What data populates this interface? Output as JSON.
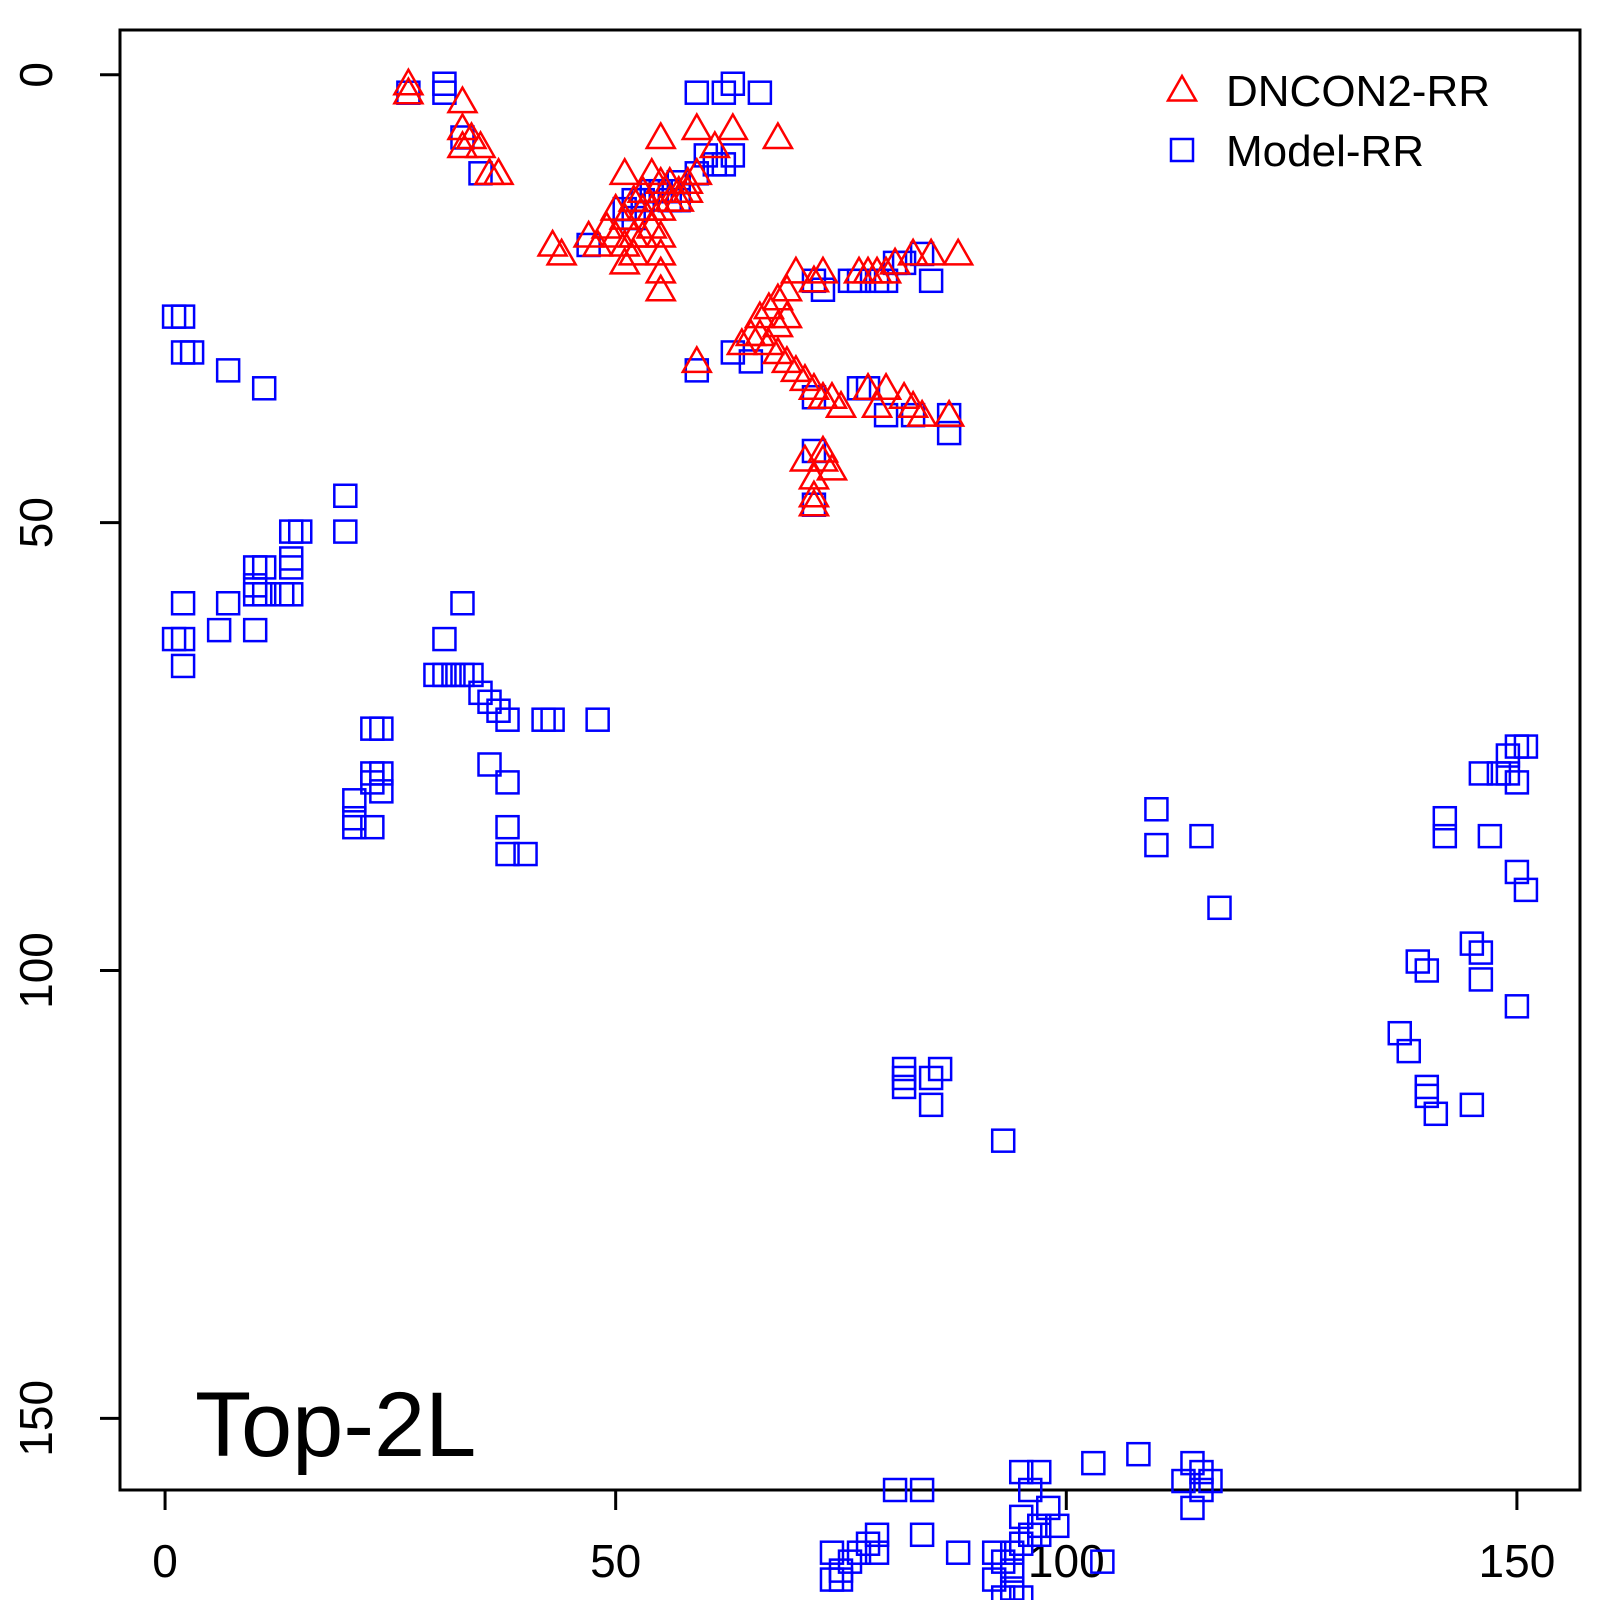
{
  "chart_data": {
    "type": "scatter",
    "xlim": [
      -5,
      157
    ],
    "ylim": [
      -5,
      158
    ],
    "y_reversed": true,
    "x_ticks": [
      0,
      50,
      100,
      150
    ],
    "y_ticks": [
      0,
      50,
      100,
      150
    ],
    "x_tick_labels": [
      "0",
      "50",
      "100",
      "150"
    ],
    "y_tick_labels": [
      "0",
      "50",
      "100",
      "150"
    ],
    "annotation": "Top-2L",
    "legend_position": "top-right",
    "grid": false,
    "series": [
      {
        "name": "DNCON2-RR",
        "marker": "triangle",
        "color": "#ff0000",
        "points": [
          [
            27,
            1
          ],
          [
            27,
            2
          ],
          [
            33,
            3
          ],
          [
            33,
            6
          ],
          [
            34,
            7
          ],
          [
            33,
            8
          ],
          [
            35,
            8
          ],
          [
            36,
            11
          ],
          [
            37,
            11
          ],
          [
            68,
            7
          ],
          [
            63,
            6
          ],
          [
            59,
            6
          ],
          [
            61,
            8
          ],
          [
            55,
            7
          ],
          [
            51,
            11
          ],
          [
            53,
            13
          ],
          [
            54,
            11
          ],
          [
            55,
            12
          ],
          [
            56,
            12
          ],
          [
            57,
            13
          ],
          [
            58,
            13
          ],
          [
            50,
            15
          ],
          [
            51,
            16
          ],
          [
            52,
            14
          ],
          [
            53,
            15
          ],
          [
            54,
            15
          ],
          [
            55,
            15
          ],
          [
            56,
            14
          ],
          [
            57,
            14
          ],
          [
            58,
            12
          ],
          [
            59,
            11
          ],
          [
            43,
            19
          ],
          [
            44,
            20
          ],
          [
            47,
            18
          ],
          [
            48,
            19
          ],
          [
            49,
            17
          ],
          [
            50,
            18
          ],
          [
            51,
            19
          ],
          [
            51,
            21
          ],
          [
            52,
            18
          ],
          [
            52,
            20
          ],
          [
            53,
            18
          ],
          [
            54,
            17
          ],
          [
            55,
            18
          ],
          [
            55,
            20
          ],
          [
            55,
            22
          ],
          [
            55,
            24
          ],
          [
            88,
            20
          ],
          [
            85,
            20
          ],
          [
            83,
            20
          ],
          [
            81,
            21
          ],
          [
            80,
            22
          ],
          [
            79,
            22
          ],
          [
            78,
            22
          ],
          [
            77,
            22
          ],
          [
            73,
            22
          ],
          [
            72,
            23
          ],
          [
            70,
            22
          ],
          [
            69,
            24
          ],
          [
            68,
            25
          ],
          [
            67,
            26
          ],
          [
            66,
            27
          ],
          [
            69,
            27
          ],
          [
            65,
            29
          ],
          [
            64,
            30
          ],
          [
            66,
            29
          ],
          [
            67,
            30
          ],
          [
            68,
            31
          ],
          [
            69,
            32
          ],
          [
            70,
            33
          ],
          [
            71,
            34
          ],
          [
            72,
            35
          ],
          [
            73,
            36
          ],
          [
            74,
            36
          ],
          [
            75,
            37
          ],
          [
            68,
            28
          ],
          [
            59,
            32
          ],
          [
            78,
            35
          ],
          [
            80,
            35
          ],
          [
            82,
            36
          ],
          [
            83,
            37
          ],
          [
            79,
            37
          ],
          [
            84,
            38
          ],
          [
            87,
            38
          ],
          [
            73,
            42
          ],
          [
            73,
            43
          ],
          [
            71,
            43
          ],
          [
            74,
            44
          ],
          [
            72,
            45
          ],
          [
            72,
            47
          ],
          [
            72,
            48
          ]
        ]
      },
      {
        "name": "Model-RR",
        "marker": "square",
        "color": "#0000ff",
        "points": [
          [
            27,
            2
          ],
          [
            31,
            1
          ],
          [
            31,
            2
          ],
          [
            33,
            7
          ],
          [
            35,
            11
          ],
          [
            59,
            2
          ],
          [
            62,
            2
          ],
          [
            63,
            1
          ],
          [
            66,
            2
          ],
          [
            63,
            9
          ],
          [
            62,
            10
          ],
          [
            61,
            10
          ],
          [
            60,
            9
          ],
          [
            59,
            11
          ],
          [
            57,
            12
          ],
          [
            56,
            13
          ],
          [
            55,
            13
          ],
          [
            54,
            13
          ],
          [
            53,
            14
          ],
          [
            52,
            14
          ],
          [
            51,
            15
          ],
          [
            52,
            16
          ],
          [
            56,
            14
          ],
          [
            57,
            14
          ],
          [
            47,
            19
          ],
          [
            72,
            23
          ],
          [
            73,
            24
          ],
          [
            76,
            23
          ],
          [
            77,
            23
          ],
          [
            79,
            23
          ],
          [
            80,
            23
          ],
          [
            81,
            21
          ],
          [
            82,
            21
          ],
          [
            84,
            20
          ],
          [
            85,
            23
          ],
          [
            59,
            33
          ],
          [
            63,
            31
          ],
          [
            65,
            32
          ],
          [
            72,
            36
          ],
          [
            77,
            35
          ],
          [
            78,
            35
          ],
          [
            80,
            38
          ],
          [
            83,
            38
          ],
          [
            87,
            38
          ],
          [
            87,
            40
          ],
          [
            72,
            42
          ],
          [
            72,
            48
          ],
          [
            1,
            27
          ],
          [
            2,
            27
          ],
          [
            2,
            31
          ],
          [
            3,
            31
          ],
          [
            7,
            33
          ],
          [
            11,
            35
          ],
          [
            20,
            47
          ],
          [
            20,
            51
          ],
          [
            14,
            51
          ],
          [
            15,
            51
          ],
          [
            14,
            54
          ],
          [
            14,
            55
          ],
          [
            10,
            55
          ],
          [
            11,
            55
          ],
          [
            10,
            57
          ],
          [
            10,
            58
          ],
          [
            11,
            58
          ],
          [
            13,
            58
          ],
          [
            14,
            58
          ],
          [
            2,
            59
          ],
          [
            7,
            59
          ],
          [
            6,
            62
          ],
          [
            10,
            62
          ],
          [
            1,
            63
          ],
          [
            2,
            63
          ],
          [
            2,
            66
          ],
          [
            33,
            59
          ],
          [
            31,
            63
          ],
          [
            30,
            67
          ],
          [
            31,
            67
          ],
          [
            32,
            67
          ],
          [
            33,
            67
          ],
          [
            34,
            67
          ],
          [
            35,
            69
          ],
          [
            36,
            70
          ],
          [
            37,
            71
          ],
          [
            38,
            72
          ],
          [
            42,
            72
          ],
          [
            43,
            72
          ],
          [
            48,
            72
          ],
          [
            23,
            73
          ],
          [
            24,
            73
          ],
          [
            23,
            78
          ],
          [
            24,
            78
          ],
          [
            23,
            79
          ],
          [
            24,
            80
          ],
          [
            21,
            81
          ],
          [
            21,
            83
          ],
          [
            23,
            84
          ],
          [
            21,
            84
          ],
          [
            36,
            77
          ],
          [
            38,
            79
          ],
          [
            38,
            84
          ],
          [
            38,
            87
          ],
          [
            40,
            87
          ],
          [
            82,
            111
          ],
          [
            82,
            112
          ],
          [
            82,
            113
          ],
          [
            85,
            112
          ],
          [
            86,
            111
          ],
          [
            85,
            115
          ],
          [
            93,
            119
          ],
          [
            150,
            75
          ],
          [
            151,
            75
          ],
          [
            149,
            76
          ],
          [
            148,
            78
          ],
          [
            149,
            78
          ],
          [
            150,
            79
          ],
          [
            146,
            78
          ],
          [
            142,
            83
          ],
          [
            142,
            85
          ],
          [
            147,
            85
          ],
          [
            150,
            89
          ],
          [
            151,
            91
          ],
          [
            139,
            99
          ],
          [
            140,
            100
          ],
          [
            145,
            97
          ],
          [
            146,
            98
          ],
          [
            146,
            101
          ],
          [
            150,
            104
          ],
          [
            137,
            107
          ],
          [
            138,
            109
          ],
          [
            140,
            113
          ],
          [
            141,
            116
          ],
          [
            145,
            115
          ],
          [
            140,
            114
          ],
          [
            110,
            82
          ],
          [
            110,
            86
          ],
          [
            115,
            85
          ],
          [
            117,
            93
          ],
          [
            108,
            154
          ],
          [
            103,
            155
          ],
          [
            114,
            155
          ],
          [
            115,
            156
          ],
          [
            116,
            157
          ],
          [
            113,
            157
          ],
          [
            115,
            158
          ],
          [
            114,
            160
          ],
          [
            95,
            156
          ],
          [
            97,
            156
          ],
          [
            96,
            158
          ],
          [
            98,
            160
          ],
          [
            95,
            161
          ],
          [
            97,
            162
          ],
          [
            99,
            162
          ],
          [
            96,
            163
          ],
          [
            97,
            163
          ],
          [
            95,
            164
          ],
          [
            94,
            165
          ],
          [
            93,
            166
          ],
          [
            94,
            167
          ],
          [
            92,
            168
          ],
          [
            94,
            169
          ],
          [
            93,
            170
          ],
          [
            95,
            170
          ],
          [
            81,
            158
          ],
          [
            84,
            158
          ],
          [
            84,
            163
          ],
          [
            88,
            165
          ],
          [
            92,
            165
          ],
          [
            104,
            166
          ],
          [
            79,
            163
          ],
          [
            78,
            164
          ],
          [
            77,
            165
          ],
          [
            76,
            166
          ],
          [
            75,
            167
          ],
          [
            75,
            168
          ],
          [
            74,
            168
          ],
          [
            79,
            165
          ],
          [
            74,
            165
          ]
        ]
      }
    ]
  }
}
